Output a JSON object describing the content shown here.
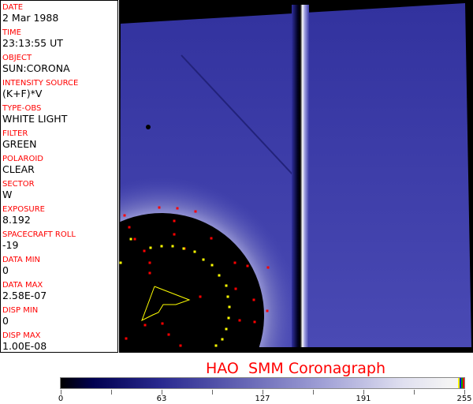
{
  "fields": [
    {
      "label": "DATE",
      "value": "2 Mar 1988"
    },
    {
      "label": "TIME",
      "value": "23:13:55 UT"
    },
    {
      "label": "OBJECT",
      "value": "SUN:CORONA"
    },
    {
      "label": "INTENSITY SOURCE",
      "value": "(K+F)*V"
    },
    {
      "label": "TYPE-OBS",
      "value": "WHITE LIGHT"
    },
    {
      "label": "FILTER",
      "value": "GREEN"
    },
    {
      "label": "POLAROID",
      "value": "CLEAR"
    },
    {
      "label": "SECTOR",
      "value": "W"
    },
    {
      "label": "EXPOSURE",
      "value": "8.192"
    },
    {
      "label": "SPACECRAFT ROLL",
      "value": "-19"
    },
    {
      "label": "DATA MIN",
      "value": "0"
    },
    {
      "label": "DATA MAX",
      "value": "2.58E-07"
    },
    {
      "label": "DISP MIN",
      "value": "0"
    },
    {
      "label": "DISP MAX",
      "value": "1.00E-08"
    }
  ],
  "title": "HAO  SMM Coronagraph",
  "colorbar": {
    "labels": [
      "0",
      "63",
      "127",
      "191",
      "255"
    ],
    "min": 0,
    "max": 255
  },
  "colors": {
    "label": "#ff0000",
    "corona": "#3c3ca8",
    "marker_red": "#ff0000",
    "marker_yellow": "#ffff00"
  }
}
